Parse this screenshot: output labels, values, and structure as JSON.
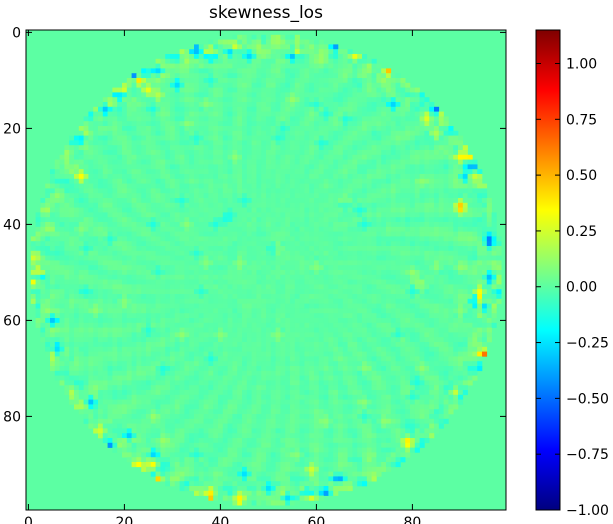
{
  "chart_data": {
    "type": "heatmap",
    "title": "skewness_los",
    "xlabel": "",
    "ylabel": "",
    "grid_shape": [
      100,
      100
    ],
    "x_range": [
      0,
      99
    ],
    "y_range": [
      0,
      99
    ],
    "y_inverted": true,
    "x_ticks": [
      0,
      20,
      40,
      60,
      80
    ],
    "y_ticks": [
      0,
      20,
      40,
      60,
      80
    ],
    "colormap": "jet",
    "colorbar": {
      "range": [
        -1.0,
        1.15
      ],
      "ticks": [
        1.0,
        0.75,
        0.5,
        0.25,
        0.0,
        -0.25,
        -0.5,
        -0.75,
        -1.0
      ],
      "tick_labels": [
        "1.00",
        "0.75",
        "0.50",
        "0.25",
        "0.00",
        "−0.25",
        "−0.50",
        "−0.75",
        "−1.00"
      ]
    },
    "background_value": 0.0,
    "disk": {
      "center": [
        49.5,
        49.5
      ],
      "radius": 49
    },
    "colors": {
      "jet_stops": [
        "#00007f",
        "#0000ff",
        "#007fff",
        "#00ffff",
        "#7fff7f",
        "#ffff00",
        "#ff7f00",
        "#ff0000",
        "#7f0000"
      ]
    }
  }
}
